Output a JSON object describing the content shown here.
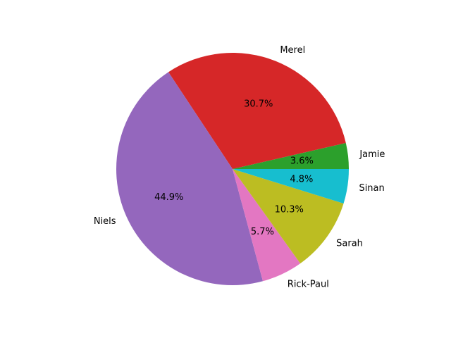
{
  "chart_data": {
    "type": "pie",
    "start_angle_deg": 0,
    "direction": "counterclockwise",
    "labels": [
      "Jamie",
      "Merel",
      "Niels",
      "Rick-Paul",
      "Sarah",
      "Sinan"
    ],
    "values": [
      3.6,
      30.7,
      44.9,
      5.7,
      10.3,
      4.8
    ],
    "percent_labels": [
      "3.6%",
      "30.7%",
      "44.9%",
      "5.7%",
      "10.3%",
      "4.8%"
    ],
    "colors": [
      "#2ca02c",
      "#d62728",
      "#9467bd",
      "#e377c2",
      "#bcbd22",
      "#17becf"
    ]
  }
}
